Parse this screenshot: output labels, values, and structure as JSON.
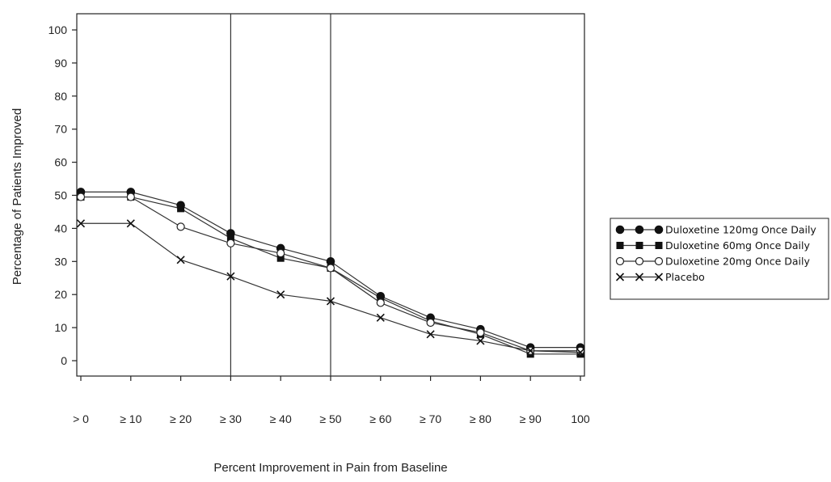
{
  "chart_data": {
    "type": "line",
    "title": "",
    "xlabel": "Percent Improvement in Pain from Baseline",
    "ylabel": "Percentage of Patients Improved",
    "categories": [
      "> 0",
      "≥ 10",
      "≥ 20",
      "≥ 30",
      "≥ 40",
      "≥ 50",
      "≥ 60",
      "≥ 70",
      "≥ 80",
      "≥ 90",
      "100"
    ],
    "yticks": [
      0,
      10,
      20,
      30,
      40,
      50,
      60,
      70,
      80,
      90,
      100
    ],
    "ylim": [
      -5,
      105
    ],
    "reference_lines_at": [
      "≥ 30",
      "≥ 50"
    ],
    "grid": false,
    "legend_position": "right",
    "series": [
      {
        "name": "Duloxetine 120mg Once Daily",
        "marker": "filled-circle",
        "values": [
          51,
          51,
          47,
          38.5,
          34,
          30,
          19.5,
          13,
          9.5,
          4,
          4
        ]
      },
      {
        "name": "Duloxetine 60mg Once Daily",
        "marker": "filled-square",
        "values": [
          49.5,
          49.5,
          46,
          37,
          31,
          28,
          19,
          12,
          8,
          2,
          2
        ]
      },
      {
        "name": "Duloxetine 20mg Once Daily",
        "marker": "open-circle",
        "values": [
          49.5,
          49.5,
          40.5,
          35.5,
          32.5,
          28,
          17.5,
          11.5,
          8.5,
          3,
          3
        ]
      },
      {
        "name": "Placebo",
        "marker": "x",
        "values": [
          41.5,
          41.5,
          30.5,
          25.5,
          20,
          18,
          13,
          8,
          6,
          3,
          2.5
        ]
      }
    ]
  }
}
